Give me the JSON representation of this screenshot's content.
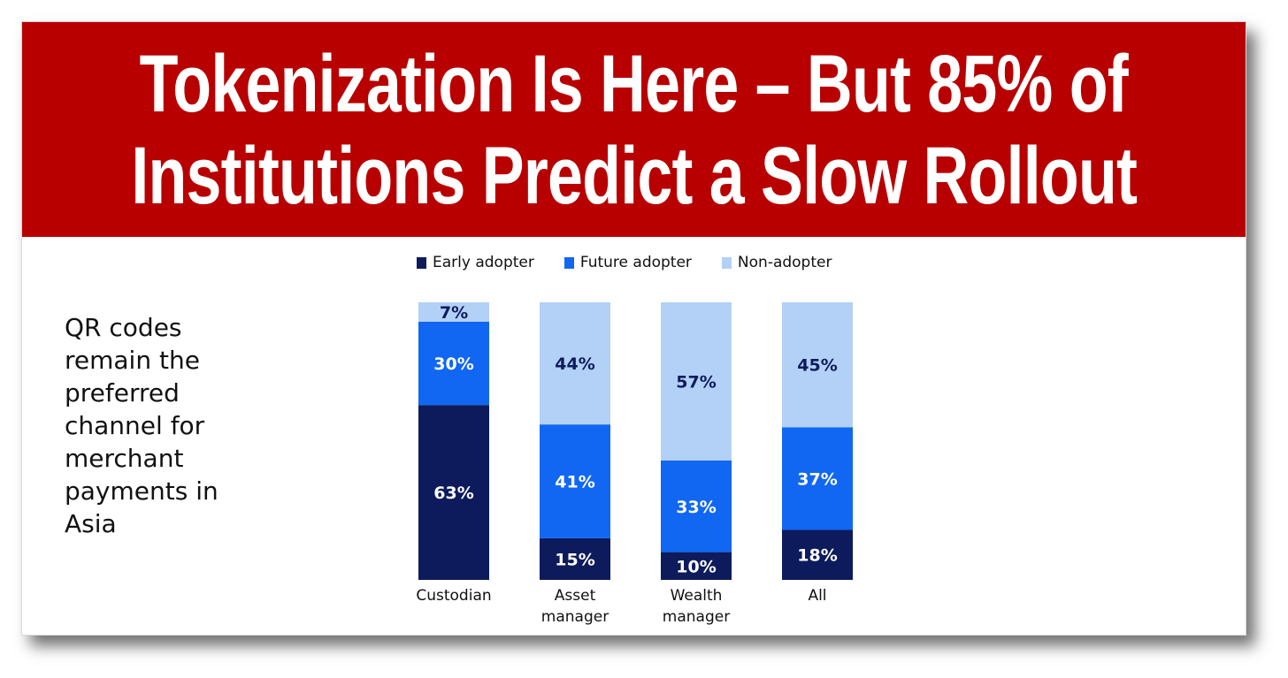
{
  "headline": {
    "line1": "Tokenization Is Here – But 85% of",
    "line2": "Institutions Predict a Slow Rollout"
  },
  "side_text": "QR codes remain the preferred channel for merchant payments in Asia",
  "colors": {
    "banner": "#b80000",
    "early": "#0d1b5c",
    "future": "#1167f2",
    "non": "#b3d1f6"
  },
  "chart_data": {
    "type": "bar",
    "stacked": true,
    "categories": [
      "Custodian",
      "Asset\nmanager",
      "Wealth\nmanager",
      "All"
    ],
    "series": [
      {
        "name": "Early adopter",
        "values": [
          63,
          15,
          10,
          18
        ]
      },
      {
        "name": "Future adopter",
        "values": [
          30,
          41,
          33,
          37
        ]
      },
      {
        "name": "Non-adopter",
        "values": [
          7,
          44,
          57,
          45
        ]
      }
    ],
    "ylim": [
      0,
      100
    ],
    "legend_position": "top",
    "grid": false,
    "value_label_suffix": "%"
  }
}
